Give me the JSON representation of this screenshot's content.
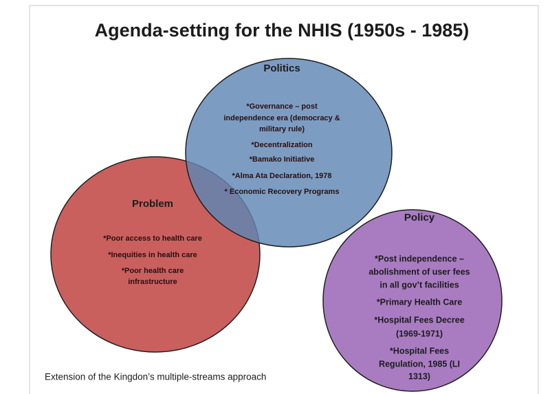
{
  "title": "Agenda-setting  for the NHIS (1950s - 1985)",
  "politics": {
    "heading": "Politics",
    "lines": [
      "*Governance – post",
      "independence era (democracy &",
      "military  rule)",
      "*Decentralization",
      "*Bamako  Initiative",
      "*Alma  Ata Declaration, 1978",
      "* Economic Recovery Programs"
    ]
  },
  "problem": {
    "heading": "Problem",
    "lines": [
      "*Poor access to health care",
      "*Inequities in health care",
      "*Poor health care",
      "infrastructure"
    ]
  },
  "policy": {
    "heading": "Policy",
    "lines": [
      "*Post independence –",
      "abolishment of user fees",
      "in all gov’t facilities",
      "*Primary Health Care",
      "*Hospital Fees Decree",
      "(1969-1971)",
      "*Hospital Fees",
      "Regulation, 1985 (LI",
      "1313)"
    ]
  },
  "footer": "Extension of the Kingdon’s multiple-streams approach"
}
